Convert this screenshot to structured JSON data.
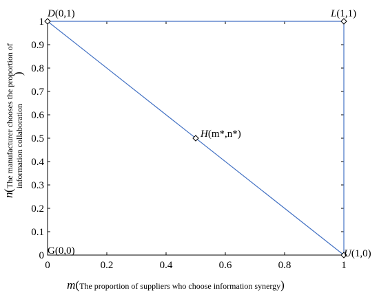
{
  "chart_data": {
    "type": "line",
    "xlim": [
      0,
      1
    ],
    "ylim": [
      0,
      1
    ],
    "grid": false,
    "xticks": [
      "0",
      "0.2",
      "0.4",
      "0.6",
      "0.8",
      "1"
    ],
    "yticks": [
      "0",
      "0.1",
      "0.2",
      "0.3",
      "0.4",
      "0.5",
      "0.6",
      "0.7",
      "0.8",
      "0.9",
      "1"
    ],
    "xlabel": {
      "symbol": "m",
      "open_paren": "(",
      "text": "The proportion of suppliers who choose information synergy",
      "close_paren": ")"
    },
    "ylabel": {
      "symbol": "n",
      "open_paren": "(",
      "line1": "The manufacturer chooses the proportion of",
      "line2": "information collaboration",
      "close_paren": ")"
    },
    "series": [
      {
        "x": [
          0,
          1
        ],
        "y": [
          1,
          1
        ]
      },
      {
        "x": [
          1,
          1
        ],
        "y": [
          1,
          0
        ]
      },
      {
        "x": [
          0,
          1
        ],
        "y": [
          1,
          0
        ]
      }
    ],
    "points": [
      {
        "id": "D",
        "x": 0,
        "y": 1,
        "marker": true,
        "label_name": "D",
        "label_coords": "(0,1)"
      },
      {
        "id": "L",
        "x": 1,
        "y": 1,
        "marker": true,
        "label_name": "L",
        "label_coords": "(1,1)"
      },
      {
        "id": "H",
        "x": 0.5,
        "y": 0.5,
        "marker": true,
        "label_name": "H",
        "label_coords": "(m*,n*)"
      },
      {
        "id": "U",
        "x": 1,
        "y": 0,
        "marker": true,
        "label_name": "U",
        "label_coords": "(1,0)"
      },
      {
        "id": "G",
        "x": 0,
        "y": 0,
        "marker": false,
        "label_name": "G",
        "label_coords": "(0,0)"
      }
    ],
    "colors": {
      "line": "#4472c4",
      "marker": "#000000",
      "axes": "#000000"
    }
  }
}
